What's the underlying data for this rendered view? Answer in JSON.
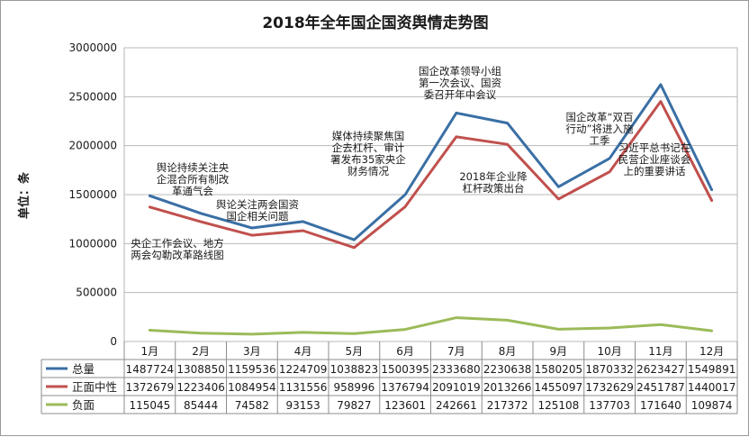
{
  "chart_data": {
    "type": "line",
    "title": "2018年全年国企国资舆情走势图",
    "ylabel": "单位：条",
    "xlabel": "",
    "categories": [
      "1月",
      "2月",
      "3月",
      "4月",
      "5月",
      "6月",
      "7月",
      "8月",
      "9月",
      "10月",
      "11月",
      "12月"
    ],
    "ylim": [
      0,
      3000000
    ],
    "yticks": [
      "0",
      "500000",
      "1000000",
      "1500000",
      "2000000",
      "2500000",
      "3000000"
    ],
    "grid": true,
    "legend": "table-left",
    "series": [
      {
        "name": "总量",
        "color": "#3a6fa5",
        "values": [
          1487724,
          1308850,
          1159536,
          1224709,
          1038823,
          1500395,
          2333680,
          2230638,
          1580205,
          1870332,
          2623427,
          1549891
        ]
      },
      {
        "name": "正面中性",
        "color": "#c0504d",
        "values": [
          1372679,
          1223406,
          1084954,
          1131556,
          958996,
          1376794,
          2091019,
          2013266,
          1455097,
          1732629,
          2451787,
          1440017
        ]
      },
      {
        "name": "负面",
        "color": "#9bbb59",
        "values": [
          115045,
          85444,
          74582,
          93153,
          79827,
          123601,
          242661,
          217372,
          125108,
          137703,
          171640,
          109874
        ]
      }
    ],
    "annotations": [
      {
        "lines": [
          "央企工作会议、地方",
          "两会勾勒改革路线图"
        ]
      },
      {
        "lines": [
          "舆论持续关注央",
          "企混合所有制改",
          "革通气会"
        ]
      },
      {
        "lines": [
          "舆论关注两会国资",
          "国企相关问题"
        ]
      },
      {
        "lines": [
          "媒体持续聚焦国",
          "企去杠杆、审计",
          "署发布35家央企",
          "财务情况"
        ]
      },
      {
        "lines": [
          "国企改革领导小组",
          "第一次会议、国资",
          "委召开年中会议"
        ]
      },
      {
        "lines": [
          "2018年企业降",
          "杠杆政策出台"
        ]
      },
      {
        "lines": [
          "国企改革“双百",
          "行动”将进入施",
          "工季"
        ]
      },
      {
        "lines": [
          "习近平总书记在",
          "民营企业座谈会",
          "上的重要讲话"
        ]
      }
    ]
  }
}
